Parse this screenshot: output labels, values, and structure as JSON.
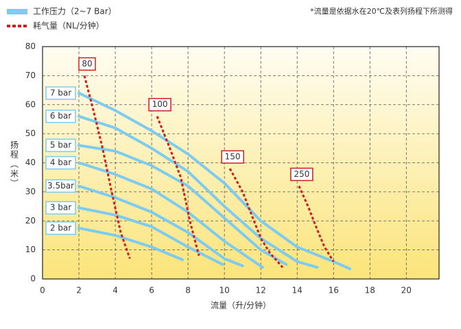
{
  "chart_data": {
    "type": "line",
    "note": "*流量是依据水在20℃及表列扬程下所测得",
    "xlabel": "流量（升/分钟）",
    "ylabel": "扬程（米）",
    "legend": [
      {
        "label": "工作压力（2~7 Bar）",
        "color": "#7dcbee",
        "dashed": false
      },
      {
        "label": "耗气量（NL/分钟）",
        "color": "#cc2020",
        "dashed": true
      }
    ],
    "xlim": [
      0,
      21.8
    ],
    "ylim": [
      0,
      80
    ],
    "xticks": [
      0,
      2,
      4,
      6,
      8,
      10,
      12,
      14,
      16,
      18,
      20
    ],
    "yticks": [
      0,
      10,
      20,
      30,
      40,
      50,
      60,
      70,
      80
    ],
    "grid": true,
    "series": [
      {
        "name": "7 bar",
        "color": "#7dcbee",
        "dashed": false,
        "x": [
          2,
          4,
          6,
          8,
          10,
          12,
          14,
          16,
          16.9
        ],
        "values": [
          64,
          58,
          51,
          43,
          33,
          20,
          11,
          6,
          3.5
        ]
      },
      {
        "name": "6 bar",
        "color": "#7dcbee",
        "dashed": false,
        "x": [
          2,
          4,
          6,
          8,
          10,
          12,
          14,
          15.1
        ],
        "values": [
          56,
          52,
          45,
          37,
          25,
          14,
          6,
          4
        ]
      },
      {
        "name": "5 bar",
        "color": "#7dcbee",
        "dashed": false,
        "x": [
          2,
          4,
          6,
          8,
          10,
          12,
          13.4
        ],
        "values": [
          46,
          44,
          39,
          32,
          21,
          10,
          5
        ]
      },
      {
        "name": "4 bar",
        "color": "#7dcbee",
        "dashed": false,
        "x": [
          2,
          4,
          6,
          8,
          10,
          12.1
        ],
        "values": [
          40,
          36,
          31,
          23,
          13,
          4
        ]
      },
      {
        "name": "3.5bar",
        "color": "#7dcbee",
        "dashed": false,
        "x": [
          2,
          4,
          6,
          8,
          10,
          11
        ],
        "values": [
          32,
          28,
          23,
          16,
          7,
          4.5
        ]
      },
      {
        "name": "3 bar",
        "color": "#7dcbee",
        "dashed": false,
        "x": [
          2,
          4,
          6,
          8,
          9.9
        ],
        "values": [
          24.5,
          22,
          18,
          11,
          5
        ]
      },
      {
        "name": "2 bar",
        "color": "#7dcbee",
        "dashed": false,
        "x": [
          2,
          4,
          6,
          7.7
        ],
        "values": [
          17.5,
          15,
          11,
          6.6
        ]
      },
      {
        "name": "80",
        "color": "#cc2020",
        "dashed": true,
        "x": [
          2.3,
          2.8,
          3.3,
          3.8,
          4.3,
          4.8
        ],
        "values": [
          70,
          58,
          45,
          30,
          16,
          7
        ]
      },
      {
        "name": "100",
        "color": "#cc2020",
        "dashed": true,
        "x": [
          6.3,
          7,
          7.6,
          8.1,
          8.6
        ],
        "values": [
          56,
          45,
          35,
          20,
          8
        ]
      },
      {
        "name": "150",
        "color": "#cc2020",
        "dashed": true,
        "x": [
          10.3,
          11,
          11.5,
          12,
          12.5,
          13.2
        ],
        "values": [
          38,
          30,
          22,
          14,
          9,
          4
        ]
      },
      {
        "name": "250",
        "color": "#cc2020",
        "dashed": true,
        "x": [
          14.1,
          14.6,
          15.1,
          15.5,
          16
        ],
        "values": [
          32,
          25,
          17,
          11,
          6
        ]
      }
    ]
  }
}
